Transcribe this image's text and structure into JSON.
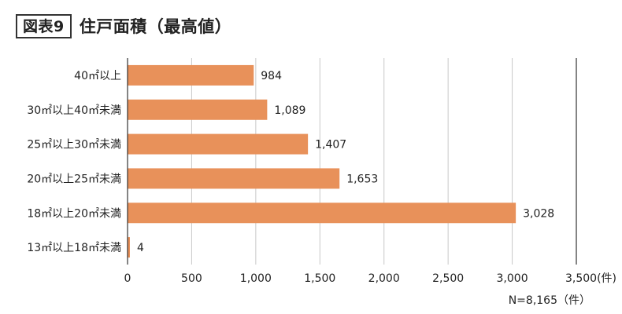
{
  "header": {
    "badge": "図表9",
    "title": "住戸面積（最高値）"
  },
  "chart_data": {
    "type": "bar",
    "orientation": "horizontal",
    "categories": [
      "40㎡以上",
      "30㎡以上40㎡未満",
      "25㎡以上30㎡未満",
      "20㎡以上25㎡未満",
      "18㎡以上20㎡未満",
      "13㎡以上18㎡未満"
    ],
    "values": [
      984,
      1089,
      1407,
      1653,
      3028,
      4
    ],
    "value_labels": [
      "984",
      "1,089",
      "1,407",
      "1,653",
      "3,028",
      "4"
    ],
    "xlim": [
      0,
      3500
    ],
    "x_ticks": [
      0,
      500,
      1000,
      1500,
      2000,
      2500,
      3000,
      3500
    ],
    "x_tick_labels": [
      "0",
      "500",
      "1,000",
      "1,500",
      "2,000",
      "2,500",
      "3,000",
      "3,500"
    ],
    "x_unit": "(件)",
    "grid": true,
    "bar_color": "#e8915a",
    "note": "N=8,165（件）"
  }
}
